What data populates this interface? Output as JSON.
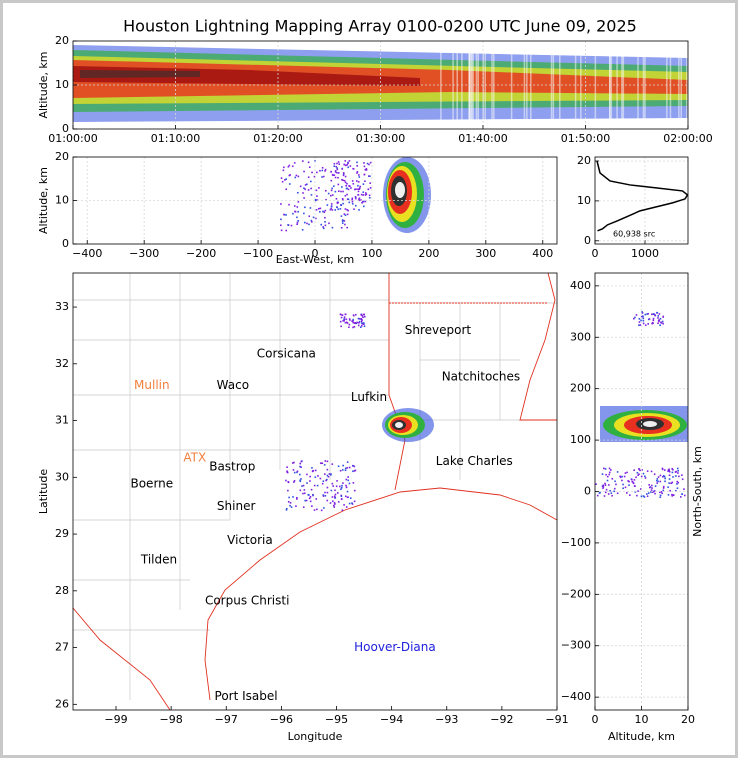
{
  "title": "Houston Lightning Mapping Array 0100-0200 UTC June 09, 2025",
  "chart_data": [
    {
      "type": "heatmap",
      "ylabel": "Altitude, km",
      "xlim": [
        0,
        60
      ],
      "ylim": [
        0,
        20
      ],
      "xticks": [
        {
          "value": 0,
          "label": "01:00:00"
        },
        {
          "value": 10,
          "label": "01:10:00"
        },
        {
          "value": 20,
          "label": "01:20:00"
        },
        {
          "value": 30,
          "label": "01:30:00"
        },
        {
          "value": 40,
          "label": "01:40:00"
        },
        {
          "value": 50,
          "label": "01:50:00"
        },
        {
          "value": 60,
          "label": "02:00:00"
        }
      ],
      "yticks": [
        0,
        10,
        20
      ],
      "grid": true
    },
    {
      "type": "heatmap",
      "xlabel": "East-West, km",
      "ylabel": "Altitude, km",
      "xlim": [
        -425,
        425
      ],
      "ylim": [
        0,
        20
      ],
      "xticks": [
        {
          "value": -400,
          "label": "−400"
        },
        {
          "value": -300,
          "label": "−300"
        },
        {
          "value": -200,
          "label": "−200"
        },
        {
          "value": -100,
          "label": "−100"
        },
        0,
        100,
        200,
        300,
        400
      ],
      "yticks": [
        0,
        10,
        20
      ],
      "grid": true
    },
    {
      "type": "line",
      "annotation": "60,938 src",
      "color": "#000000",
      "xlim": [
        0,
        1860
      ],
      "ylim": [
        -0.8,
        21
      ],
      "xticks": [
        0,
        1000
      ],
      "yticks": [
        0,
        10,
        20
      ],
      "grid": true,
      "x": [
        50,
        150,
        250,
        450,
        900,
        1550,
        1800,
        1850,
        1750,
        1200,
        700,
        300,
        100,
        40
      ],
      "y": [
        2.5,
        3,
        4,
        5,
        7.5,
        9.5,
        10.5,
        11.5,
        12.5,
        13.3,
        14,
        15,
        17,
        20
      ]
    },
    {
      "type": "map",
      "xlabel": "Longitude",
      "ylabel": "Latitude",
      "xlim": [
        -99.78,
        -91
      ],
      "ylim": [
        25.9,
        33.6
      ],
      "xticks": [
        {
          "value": -99,
          "label": "−99"
        },
        {
          "value": -98,
          "label": "−98"
        },
        {
          "value": -97,
          "label": "−97"
        },
        {
          "value": -96,
          "label": "−96"
        },
        {
          "value": -95,
          "label": "−95"
        },
        {
          "value": -94,
          "label": "−94"
        },
        {
          "value": -93,
          "label": "−93"
        },
        {
          "value": -92,
          "label": "−92"
        },
        {
          "value": -91,
          "label": "−91"
        }
      ],
      "yticks": [
        26,
        27,
        28,
        29,
        30,
        31,
        32,
        33
      ],
      "grid": false,
      "cities": [
        {
          "name": "Shreveport",
          "lon": -93.16,
          "lat": 32.59,
          "color": "#000000"
        },
        {
          "name": "Corsicana",
          "lon": -95.91,
          "lat": 32.17,
          "color": "#000000"
        },
        {
          "name": "Mullin",
          "lon": -98.35,
          "lat": 31.62,
          "color": "#f08040"
        },
        {
          "name": "Waco",
          "lon": -96.88,
          "lat": 31.62,
          "color": "#000000"
        },
        {
          "name": "Natchitoches",
          "lon": -92.38,
          "lat": 31.77,
          "color": "#000000"
        },
        {
          "name": "Lufkin",
          "lon": -94.41,
          "lat": 31.41,
          "color": "#000000"
        },
        {
          "name": "ATX",
          "lon": -97.57,
          "lat": 30.34,
          "color": "#f08040"
        },
        {
          "name": "Bastrop",
          "lon": -96.89,
          "lat": 30.18,
          "color": "#000000"
        },
        {
          "name": "Boerne",
          "lon": -98.35,
          "lat": 29.88,
          "color": "#000000"
        },
        {
          "name": "Lake Charles",
          "lon": -92.5,
          "lat": 30.28,
          "color": "#000000"
        },
        {
          "name": "Shiner",
          "lon": -96.82,
          "lat": 29.49,
          "color": "#000000"
        },
        {
          "name": "Victoria",
          "lon": -96.57,
          "lat": 28.89,
          "color": "#000000"
        },
        {
          "name": "Tilden",
          "lon": -98.22,
          "lat": 28.54,
          "color": "#000000"
        },
        {
          "name": "Corpus Christi",
          "lon": -96.62,
          "lat": 27.82,
          "color": "#000000"
        },
        {
          "name": "Hoover-Diana",
          "lon": -93.94,
          "lat": 27.0,
          "color": "#2020e0"
        },
        {
          "name": "Port Isabel",
          "lon": -96.64,
          "lat": 26.14,
          "color": "#000000"
        }
      ]
    },
    {
      "type": "heatmap",
      "xlabel": "Altitude, km",
      "ylabel": "North-South, km",
      "xlim": [
        0,
        20
      ],
      "ylim": [
        -425,
        425
      ],
      "xticks": [
        0,
        10,
        20
      ],
      "yticks": [
        {
          "value": -400,
          "label": "−400"
        },
        {
          "value": -300,
          "label": "−300"
        },
        {
          "value": -200,
          "label": "−200"
        },
        {
          "value": -100,
          "label": "−100"
        },
        0,
        100,
        200,
        300,
        400
      ],
      "grid": true
    }
  ]
}
